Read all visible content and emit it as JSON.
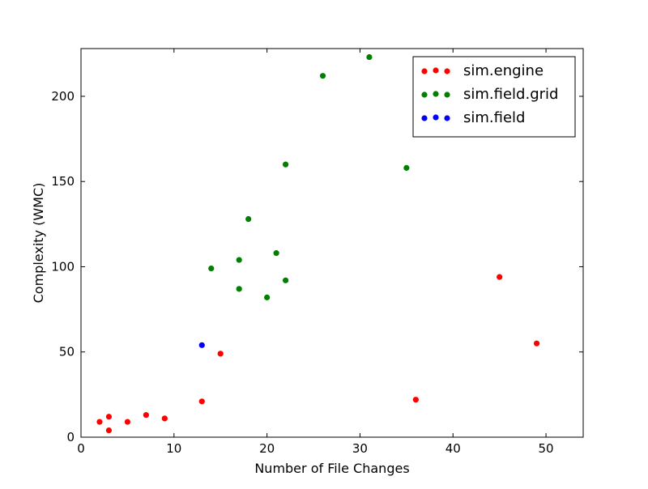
{
  "chart_data": {
    "type": "scatter",
    "xlabel": "Number of File Changes",
    "ylabel": "Complexity (WMC)",
    "xlim": [
      0,
      54
    ],
    "ylim": [
      0,
      228
    ],
    "xticks": [
      0,
      10,
      20,
      30,
      40,
      50
    ],
    "yticks": [
      0,
      50,
      100,
      150,
      200
    ],
    "legend_position": "top-right",
    "grid": false,
    "series": [
      {
        "name": "sim.engine",
        "color": "#ff0000",
        "points": [
          {
            "x": 2,
            "y": 9
          },
          {
            "x": 3,
            "y": 12
          },
          {
            "x": 3,
            "y": 4
          },
          {
            "x": 5,
            "y": 9
          },
          {
            "x": 7,
            "y": 13
          },
          {
            "x": 9,
            "y": 11
          },
          {
            "x": 13,
            "y": 21
          },
          {
            "x": 15,
            "y": 49
          },
          {
            "x": 36,
            "y": 22
          },
          {
            "x": 45,
            "y": 94
          },
          {
            "x": 49,
            "y": 55
          }
        ]
      },
      {
        "name": "sim.field.grid",
        "color": "#008000",
        "points": [
          {
            "x": 14,
            "y": 99
          },
          {
            "x": 17,
            "y": 104
          },
          {
            "x": 17,
            "y": 87
          },
          {
            "x": 18,
            "y": 128
          },
          {
            "x": 20,
            "y": 82
          },
          {
            "x": 21,
            "y": 108
          },
          {
            "x": 22,
            "y": 160
          },
          {
            "x": 22,
            "y": 92
          },
          {
            "x": 26,
            "y": 212
          },
          {
            "x": 31,
            "y": 223
          },
          {
            "x": 35,
            "y": 158
          }
        ]
      },
      {
        "name": "sim.field",
        "color": "#0000ff",
        "points": [
          {
            "x": 13,
            "y": 54
          }
        ]
      }
    ]
  }
}
